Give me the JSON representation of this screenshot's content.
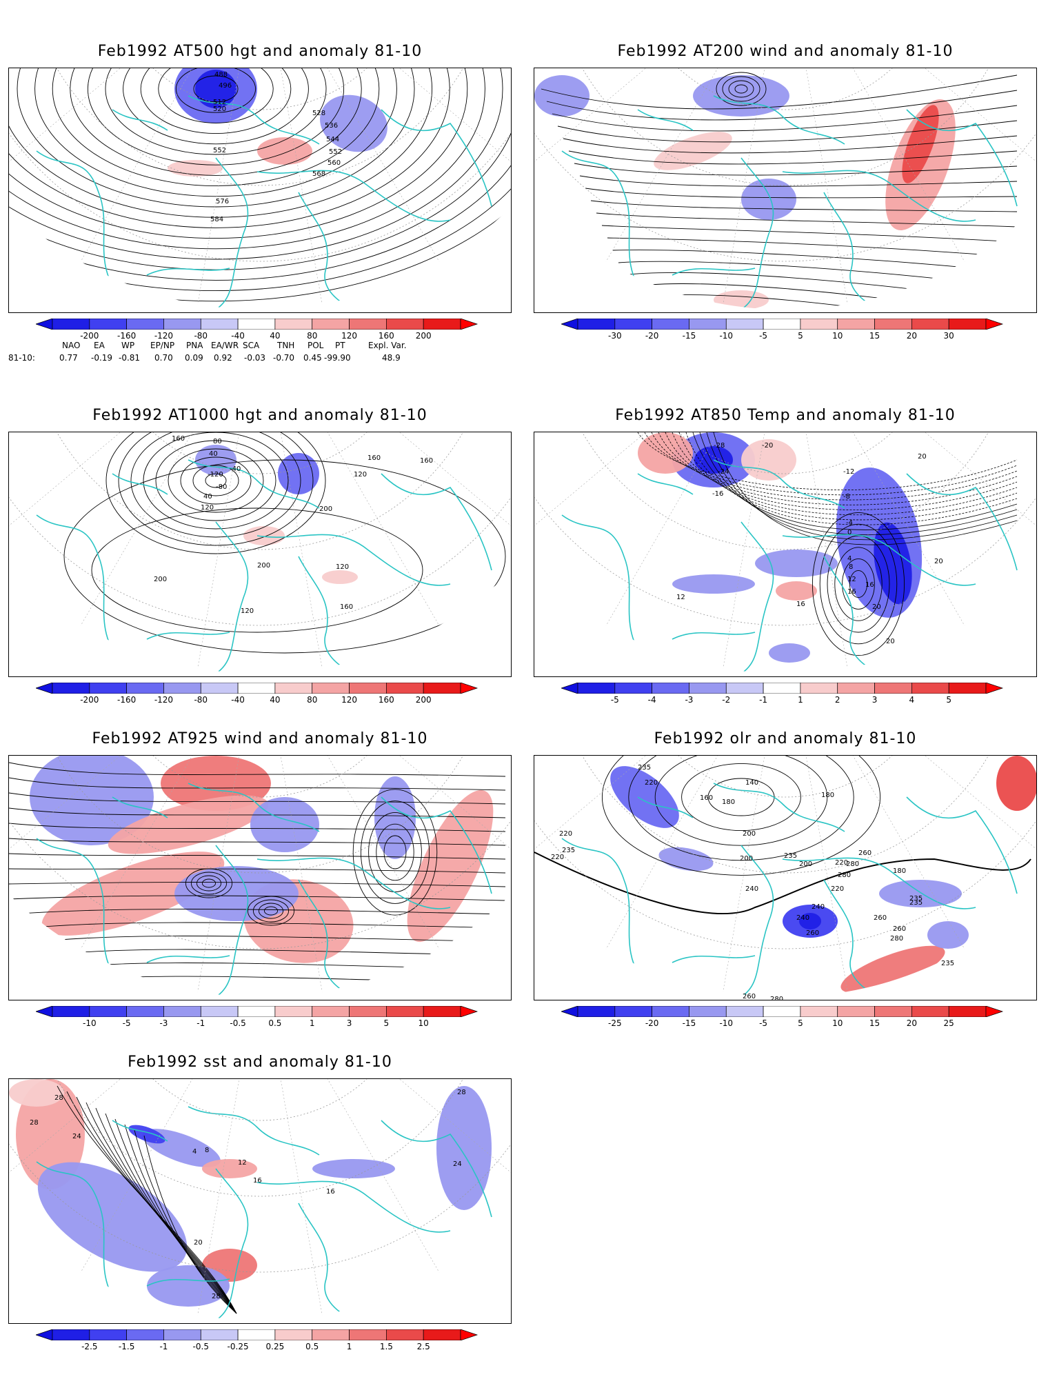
{
  "panels": [
    {
      "id": "z500",
      "title": "Feb1992 AT500 hgt and anomaly 81-10",
      "colorbar": [
        "-200",
        "-160",
        "-120",
        "-80",
        "-40",
        "40",
        "80",
        "120",
        "160",
        "200"
      ],
      "contour_labels": [
        "496",
        "488",
        "512",
        "520",
        "528",
        "536",
        "544",
        "552",
        "552",
        "560",
        "568",
        "576",
        "584"
      ]
    },
    {
      "id": "wind200",
      "title": "Feb1992 AT200 wind and anomaly 81-10",
      "colorbar": [
        "-30",
        "-20",
        "-15",
        "-10",
        "-5",
        "5",
        "10",
        "15",
        "20",
        "30"
      ],
      "contour_labels": []
    },
    {
      "id": "z1000",
      "title": "Feb1992 AT1000 hgt and anomaly 81-10",
      "colorbar": [
        "-200",
        "-160",
        "-120",
        "-80",
        "-40",
        "40",
        "80",
        "120",
        "160",
        "200"
      ],
      "contour_labels": [
        "160",
        "80",
        "40",
        "-40",
        "-120",
        "-80",
        "40",
        "120",
        "200",
        "160",
        "120",
        "160",
        "200",
        "120",
        "200",
        "160",
        "120"
      ]
    },
    {
      "id": "t850",
      "title": "Feb1992 AT850 Temp and anomaly 81-10",
      "colorbar": [
        "-5",
        "-4",
        "-3",
        "-2",
        "-1",
        "1",
        "2",
        "3",
        "4",
        "5"
      ],
      "contour_labels": [
        "-28",
        "-24",
        "-20",
        "-16",
        "-12",
        "-8",
        "-4",
        "0",
        "4",
        "8",
        "12",
        "16",
        "20",
        "16",
        "20",
        "12",
        "16",
        "20",
        "20"
      ]
    },
    {
      "id": "wind925",
      "title": "Feb1992 AT925 wind and anomaly 81-10",
      "colorbar": [
        "-10",
        "-5",
        "-3",
        "-1",
        "-0.5",
        "0.5",
        "1",
        "3",
        "5",
        "10"
      ],
      "contour_labels": []
    },
    {
      "id": "olr",
      "title": "Feb1992 olr and anomaly 81-10",
      "colorbar": [
        "-25",
        "-20",
        "-15",
        "-10",
        "-5",
        "5",
        "10",
        "15",
        "20",
        "25"
      ],
      "contour_labels": [
        "235",
        "220",
        "140",
        "160",
        "180",
        "180",
        "200",
        "240",
        "220",
        "200",
        "180",
        "200",
        "220",
        "280",
        "220",
        "235",
        "235",
        "235",
        "260",
        "280",
        "260",
        "240",
        "240",
        "235",
        "260",
        "280",
        "260",
        "220",
        "235",
        "260",
        "280",
        "260"
      ]
    },
    {
      "id": "sst",
      "title": "Feb1992 sst and anomaly 81-10",
      "colorbar": [
        "-2.5",
        "-1.5",
        "-1",
        "-0.5",
        "-0.25",
        "0.25",
        "0.5",
        "1",
        "1.5",
        "2.5"
      ],
      "contour_labels": [
        "28",
        "28",
        "24",
        "12",
        "4",
        "8",
        "16",
        "20",
        "16",
        "24",
        "28",
        "28"
      ]
    }
  ],
  "teleconnections": {
    "headers": [
      "NAO",
      "EA",
      "WP",
      "EP/NP",
      "PNA",
      "EA/WR",
      "SCA",
      "TNH",
      "POL",
      "PT",
      "Expl. Var."
    ],
    "row_label": "81-10:",
    "values": [
      "0.77",
      "-0.19",
      "-0.81",
      "0.70",
      "0.09",
      "0.92",
      "-0.03",
      "-0.70",
      "0.45",
      "-99.90",
      "48.9"
    ]
  },
  "colors": {
    "coast": "#29c4c4",
    "blue_scale": [
      "#1f1fe6",
      "#4040f0",
      "#6a6af2",
      "#9898f0",
      "#c8c8f6"
    ],
    "red_scale": [
      "#f8cccc",
      "#f4a4a4",
      "#ee7676",
      "#ea4a4a",
      "#e81a1a"
    ]
  }
}
